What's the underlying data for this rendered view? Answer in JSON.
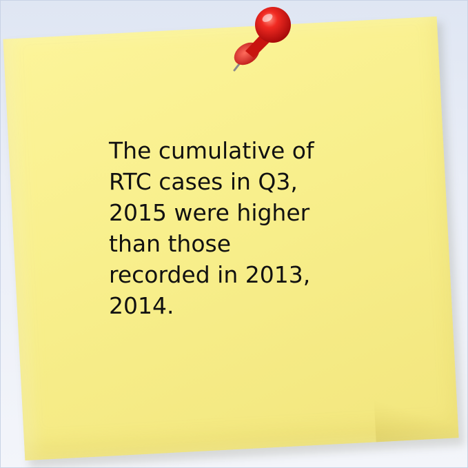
{
  "note": {
    "text": "The cumulative of\nRTC cases in Q3,\n2015 were higher\nthan those\nrecorded in 2013,\n2014."
  },
  "icons": {
    "pin": "push-pin-icon"
  },
  "colors": {
    "note_yellow": "#f8ef8c",
    "pin_red": "#e01a1a",
    "background": "#e6ebf5"
  }
}
